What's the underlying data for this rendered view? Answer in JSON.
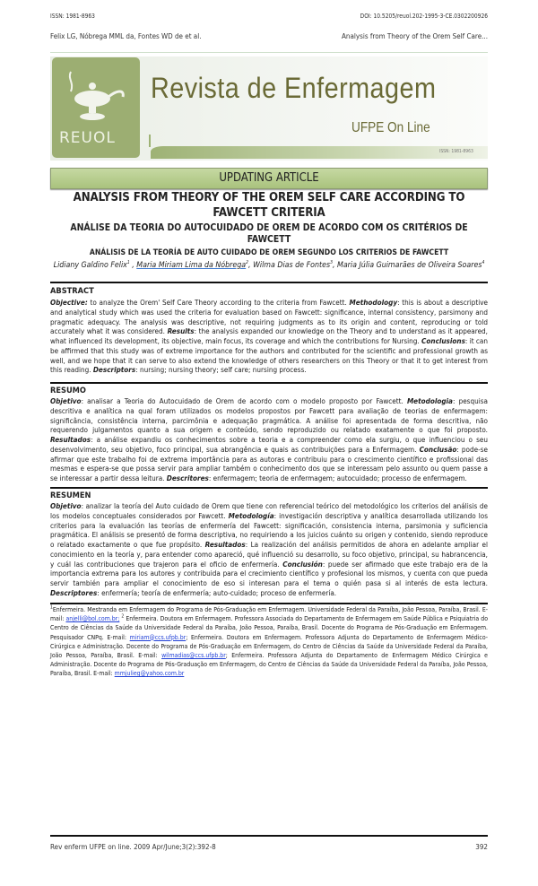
{
  "header": {
    "issn": "ISSN: 1981-8963",
    "doi": "DOI: 10.5205/reuol.202-1995-3-CE.0302200926",
    "authors_short": "Felix LG, Nóbrega MML da, Fontes WD de et al.",
    "running_title": "Analysis from Theory of the Orem Self Care..."
  },
  "banner": {
    "logo_text": "REUOL",
    "title": "Revista de Enfermagem",
    "subtitle": "UFPE On Line",
    "issn": "ISSN: 1981-8963",
    "brand_color": "#9cae72"
  },
  "article": {
    "type": "UPDATING ARTICLE",
    "title_en": "ANALYSIS FROM THEORY OF THE OREM SELF CARE ACCORDING TO FAWCETT CRITERIA",
    "title_pt": "ANÁLISE DA TEORIA DO AUTOCUIDADO DE OREM DE ACORDO COM OS CRITÉRIOS DE FAWCETT",
    "title_es": "ANÁLISIS DE LA TEORÍA DE AUTO CUIDADO DE OREM SEGUNDO LOS CRITERIOS DE FAWCETT",
    "authors": [
      {
        "name": "Lidiany Galdino Felix",
        "sup": "1"
      },
      {
        "name": "Maria Miriam Lima da Nóbrega",
        "sup": "2"
      },
      {
        "name": "Wilma Dias de Fontes",
        "sup": "3"
      },
      {
        "name": "Maria Júlia Guimarães de Oliveira Soares",
        "sup": "4"
      }
    ]
  },
  "abstract": {
    "heading": "ABSTRACT",
    "segments": [
      {
        "label": "Objective:",
        "text": " to analyze the Orem' Self Care Theory according to the criteria from Fawcett. "
      },
      {
        "label": "Methodology",
        "text": ": this is about a descriptive and analytical study which was used the criteria for evaluation based on Fawcett: significance, internal consistency, parsimony and pragmatic adequacy. The analysis was descriptive, not requiring judgments as to its origin and content, reproducing or told accurately what it was considered. "
      },
      {
        "label": "Results",
        "text": ": the analysis expanded our knowledge on the Theory and to understand as it appeared, what influenced its development, its objective, main focus, its coverage and which the contributions for Nursing. "
      },
      {
        "label": "Conclusions",
        "text": ": it can be affirmed that this study was of extreme importance for the authors and contributed for the scientific and professional growth as well, and we hope that it can serve to also extend the knowledge of others researchers on this Theory or that it to get interest from this reading. "
      },
      {
        "label": "Descriptors",
        "text": ": nursing; nursing theory; self care; nursing process."
      }
    ]
  },
  "resumo": {
    "heading": "RESUMO",
    "segments": [
      {
        "label": "Objetivo",
        "text": ": analisar a Teoria do Autocuidado de Orem de acordo com o modelo proposto por Fawcett. "
      },
      {
        "label": "Metodologia",
        "text": ": pesquisa descritiva e analítica na qual foram utilizados os modelos propostos por Fawcett para avaliação de teorias de enfermagem: significância, consistência interna, parcimônia e adequação pragmática. A análise foi apresentada de forma descritiva, não requerendo julgamentos quanto a sua origem e conteúdo, sendo reproduzido ou relatado exatamente o que foi proposto. "
      },
      {
        "label": "Resultados",
        "text": ": a análise expandiu os conhecimentos sobre a teoria e a compreender como ela surgiu, o que influenciou o seu desenvolvimento, seu objetivo, foco principal, sua abrangência e quais as contribuições para a Enfermagem. "
      },
      {
        "label": "Conclusão",
        "text": ": pode-se afirmar que este trabalho foi de extrema importância para as autoras e contribuiu para o crescimento científico e profissional das mesmas e espera-se que possa servir para ampliar também o conhecimento dos que se interessam pelo assunto ou quem passe a se interessar a partir dessa leitura. "
      },
      {
        "label": "Descritores",
        "text": ": enfermagem; teoria de enfermagem; autocuidado; processo de enfermagem."
      }
    ]
  },
  "resumen": {
    "heading": "RESUMEN",
    "segments": [
      {
        "label": "Objetivo",
        "text": ": analizar la teoría del Auto cuidado de Orem que tiene con referencial teórico del metodológico los criterios del análisis de los modelos conceptuales considerados por Fawcett. "
      },
      {
        "label": "Metodología",
        "text": ": investigación descriptiva y analítica desarrollada utilizando los criterios para la evaluación las teorías de enfermería del Fawcett: significación, consistencia interna, parsimonia y suficiencia pragmática. El análisis se presentó de forma descriptiva, no requiriendo a los juicios cuánto su origen y contenido, siendo reproduce o relatado exactamente o que fue propósito. "
      },
      {
        "label": "Resultados",
        "text": ": La realización del análisis permitidos de ahora en adelante ampliar el conocimiento en la teoría y, para entender como apareció, qué influenció su desarrollo, su foco objetivo, principal, su habrancencia, y cuál las contribuciones que trajeron para el oficio de enfermería. "
      },
      {
        "label": "Conclusión",
        "text": ": puede ser afirmado que este trabajo era de la importancia extrema para los autores y contribuida para el crecimiento científico y profesional los mismos, y cuenta con que pueda servir también para ampliar el conocimiento de eso si interesan para el tema o quién pasa si al interés de esta lectura. "
      },
      {
        "label": "Descriptores",
        "text": ": enfermería; teoría de enfermería; auto-cuidado; proceso de enfermería."
      }
    ]
  },
  "footnotes": {
    "n1": "Enfermeira. Mestranda em Enfermagem do Programa de Pós-Graduação em Enfermagem. Universidade Federal da Paraíba, João Pessoa, Paraíba, Brasil. E-mail: ",
    "e1": "anjelli@bol.com.br;",
    "n2": " Enfermeira. Doutora em Enfermagem. Professora Associada do Departamento de Enfermagem em Saúde Pública e Psiquiatria do Centro de Ciências da Saúde da Universidade Federal da Paraíba, João Pessoa, Paraíba, Brasil. Docente do Programa de Pós-Graduação em Enfermagem. Pesquisador CNPq. E-mail: ",
    "e2": "miriam@ccs.ufpb.br",
    "n3": "; Enfermeira. Doutora em Enfermagem. Professora Adjunta do Departamento de Enfermagem Médico-Cirúrgica e Administração. Docente do Programa de Pós-Graduação em Enfermagem, do Centro de Ciências da Saúde da Universidade Federal da Paraíba, João Pessoa, Paraíba, Brasil. E-mail: ",
    "e3": "wilmadias@ccs.ufpb.br",
    "n4": "; Enfermeira. Professora Adjunta do Departamento de Enfermagem Médico Cirúrgica e Administração. Docente do Programa de Pós-Graduação em Enfermagem, do Centro de Ciências da Saúde da Universidade Federal da Paraíba, João Pessoa, Paraíba, Brasil. E-mail: ",
    "e4": "mmjulieg@yahoo.com.br"
  },
  "footer": {
    "citation": "Rev enferm UFPE on line. 2009 Apr/June;3(2):392-8",
    "page": "392"
  }
}
